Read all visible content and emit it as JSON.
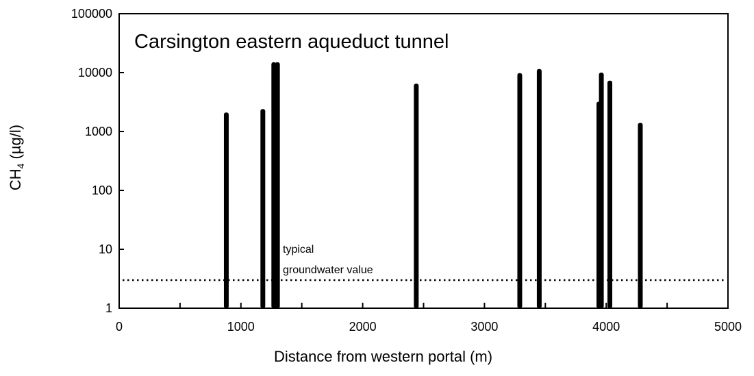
{
  "chart_data": {
    "type": "bar",
    "title": "Carsington eastern aqueduct tunnel",
    "xlabel": "Distance from western portal (m)",
    "ylabel_prefix": "CH",
    "ylabel_sub": "4",
    "ylabel_suffix": " (µg/l)",
    "xlim": [
      0,
      5000
    ],
    "ylim": [
      1,
      100000
    ],
    "y_scale": "log",
    "x_ticks": [
      "0",
      "1000",
      "2000",
      "3000",
      "4000",
      "5000"
    ],
    "y_ticks": [
      "1",
      "10",
      "100",
      "1000",
      "10000",
      "100000"
    ],
    "grid": false,
    "bars": [
      {
        "x": 880,
        "value": 2100
      },
      {
        "x": 1180,
        "value": 2400
      },
      {
        "x": 1270,
        "value": 15000
      },
      {
        "x": 1300,
        "value": 15000
      },
      {
        "x": 2440,
        "value": 6500
      },
      {
        "x": 3290,
        "value": 9800
      },
      {
        "x": 3450,
        "value": 11500
      },
      {
        "x": 3940,
        "value": 3200
      },
      {
        "x": 3960,
        "value": 10000
      },
      {
        "x": 4030,
        "value": 7300
      },
      {
        "x": 4280,
        "value": 1400
      }
    ],
    "reference_line": {
      "value": 3,
      "style": "dotted",
      "label_line1": "typical",
      "label_line2": "groundwater value"
    },
    "colors": {
      "bars": "#000000",
      "axis": "#000000",
      "background": "#ffffff"
    }
  }
}
